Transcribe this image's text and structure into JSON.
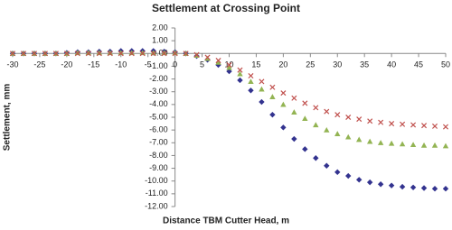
{
  "chart_data": {
    "type": "scatter",
    "title": "Settlement at Crossing Point",
    "x_label": "Distance TBM Cutter Head, m",
    "y_label": "Settlement, mm",
    "x": [
      -30,
      -28,
      -26,
      -24,
      -22,
      -20,
      -18,
      -16,
      -14,
      -12,
      -10,
      -8,
      -6,
      -4,
      -2,
      0,
      2,
      4,
      6,
      8,
      10,
      12,
      14,
      16,
      18,
      20,
      22,
      24,
      26,
      28,
      30,
      32,
      34,
      36,
      38,
      40,
      42,
      44,
      46,
      48,
      50
    ],
    "series": [
      {
        "color": "#33338f",
        "marker": "diamond",
        "values": [
          0,
          0,
          0,
          0,
          0,
          0.05,
          0.1,
          0.1,
          0.15,
          0.15,
          0.2,
          0.2,
          0.2,
          0.2,
          0.15,
          0.1,
          0,
          -0.2,
          -0.5,
          -0.9,
          -1.4,
          -2.1,
          -2.9,
          -3.8,
          -4.8,
          -5.8,
          -6.7,
          -7.5,
          -8.2,
          -8.8,
          -9.3,
          -9.6,
          -9.9,
          -10.1,
          -10.25,
          -10.35,
          -10.45,
          -10.5,
          -10.55,
          -10.6,
          -10.6
        ]
      },
      {
        "color": "#93b453",
        "marker": "triangle",
        "values": [
          0,
          0,
          0,
          0,
          0,
          0,
          0.05,
          0.05,
          0.05,
          0.05,
          0.05,
          0.05,
          0.05,
          0.05,
          0.05,
          0.05,
          0,
          -0.15,
          -0.4,
          -0.7,
          -1.1,
          -1.6,
          -2.2,
          -2.8,
          -3.4,
          -4.0,
          -4.6,
          -5.1,
          -5.6,
          -6.0,
          -6.3,
          -6.55,
          -6.75,
          -6.9,
          -7.0,
          -7.05,
          -7.1,
          -7.15,
          -7.2,
          -7.2,
          -7.25
        ]
      },
      {
        "color": "#c0504d",
        "marker": "x",
        "values": [
          0,
          0,
          0,
          0,
          0,
          0,
          0,
          0,
          0,
          0,
          0,
          0,
          0,
          0,
          0,
          0,
          0,
          -0.1,
          -0.3,
          -0.55,
          -0.9,
          -1.3,
          -1.75,
          -2.2,
          -2.65,
          -3.1,
          -3.5,
          -3.9,
          -4.25,
          -4.55,
          -4.8,
          -5.0,
          -5.15,
          -5.3,
          -5.4,
          -5.5,
          -5.55,
          -5.6,
          -5.65,
          -5.7,
          -5.75
        ]
      }
    ],
    "xlim": [
      -30,
      50
    ],
    "xticks": [
      -30,
      -25,
      -20,
      -15,
      -10,
      -5,
      0,
      5,
      10,
      15,
      20,
      25,
      30,
      35,
      40,
      45,
      50
    ],
    "ylim": [
      -12,
      2
    ],
    "yticks": [
      {
        "value": 2,
        "label": "2.00"
      },
      {
        "value": 1,
        "label": "1.00"
      },
      {
        "value": 0,
        "label": "0.00"
      },
      {
        "value": -1,
        "label": "-1.00"
      },
      {
        "value": -2,
        "label": "-2.00"
      },
      {
        "value": -3,
        "label": "-3.00"
      },
      {
        "value": -4,
        "label": "-4.00"
      },
      {
        "value": -5,
        "label": "-5.00"
      },
      {
        "value": -6,
        "label": "-6.00"
      },
      {
        "value": -7,
        "label": "-7.00"
      },
      {
        "value": -8,
        "label": "-8.00"
      },
      {
        "value": -9,
        "label": "-9.00"
      },
      {
        "value": -10,
        "label": "-10.00"
      },
      {
        "value": -11,
        "label": "-11.00"
      },
      {
        "value": -12,
        "label": "-12.00"
      }
    ],
    "grid": false
  }
}
